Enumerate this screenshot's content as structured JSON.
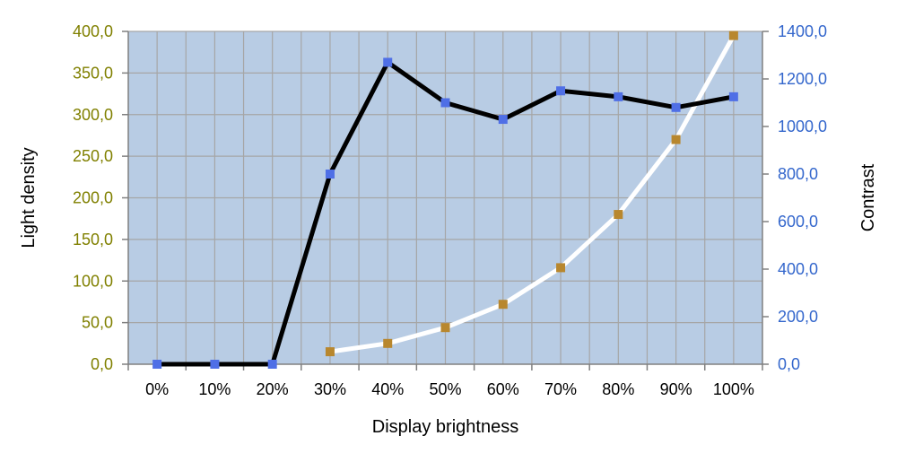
{
  "chart_data": {
    "type": "line",
    "xlabel": "Display brightness",
    "ylabel": "Light density",
    "y2label": "Contrast",
    "categories": [
      "0%",
      "10%",
      "20%",
      "30%",
      "40%",
      "50%",
      "60%",
      "70%",
      "80%",
      "90%",
      "100%"
    ],
    "ylim": [
      0,
      400
    ],
    "y2lim": [
      0,
      1400
    ],
    "yticks": [
      "0,0",
      "50,0",
      "100,0",
      "150,0",
      "200,0",
      "250,0",
      "300,0",
      "350,0",
      "400,0"
    ],
    "y2ticks": [
      "0,0",
      "200,0",
      "400,0",
      "600,0",
      "800,0",
      "1000,0",
      "1200,0",
      "1400,0"
    ],
    "grid": true,
    "plot_background": "#b8cce4",
    "grid_color": "#a6a6a6",
    "left_axis_color": "#808000",
    "right_axis_color": "#3366cc",
    "series": [
      {
        "axis": "left",
        "line_color": "#ffffff",
        "marker_color": "#b8872e",
        "values": [
          null,
          null,
          null,
          15,
          25,
          44,
          72,
          116,
          180,
          270,
          395
        ]
      },
      {
        "axis": "right",
        "line_color": "#000000",
        "marker_color": "#4f6fe6",
        "values": [
          0,
          0,
          0,
          800,
          1270,
          1100,
          1030,
          1150,
          1125,
          1080,
          1125
        ]
      }
    ]
  }
}
